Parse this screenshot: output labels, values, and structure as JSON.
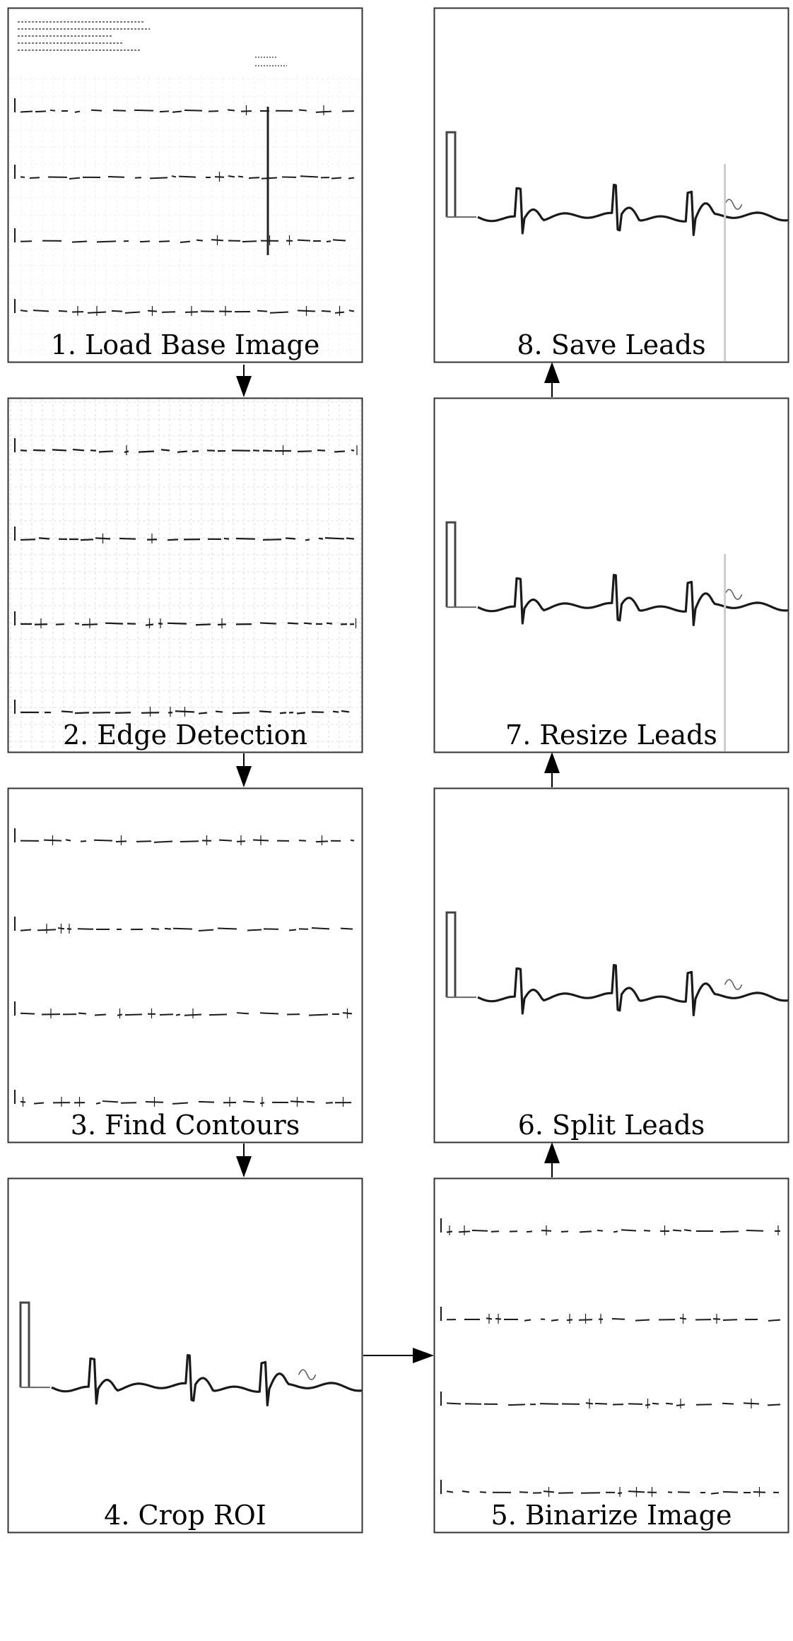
{
  "diagram": {
    "steps": [
      {
        "id": "s1",
        "label": "1. Load Base Image",
        "thumbnail": "ecg-full-page"
      },
      {
        "id": "s2",
        "label": "2. Edge Detection",
        "thumbnail": "ecg-edges"
      },
      {
        "id": "s3",
        "label": "3. Find Contours",
        "thumbnail": "ecg-contours"
      },
      {
        "id": "s4",
        "label": "4. Crop ROI",
        "thumbnail": "ecg-single-lead"
      },
      {
        "id": "s5",
        "label": "5. Binarize Image",
        "thumbnail": "ecg-contours"
      },
      {
        "id": "s6",
        "label": "6. Split Leads",
        "thumbnail": "ecg-single-lead"
      },
      {
        "id": "s7",
        "label": "7. Resize Leads",
        "thumbnail": "ecg-single-lead-marker"
      },
      {
        "id": "s8",
        "label": "8. Save Leads",
        "thumbnail": "ecg-single-lead-marker"
      }
    ],
    "flow": [
      [
        "s1",
        "s2"
      ],
      [
        "s2",
        "s3"
      ],
      [
        "s3",
        "s4"
      ],
      [
        "s4",
        "s5"
      ],
      [
        "s5",
        "s6"
      ],
      [
        "s6",
        "s7"
      ],
      [
        "s7",
        "s8"
      ]
    ],
    "colors": {
      "border": "#333333",
      "arrow": "#000000",
      "trace": "#1a1a1a",
      "grid": "#d9d9d9"
    }
  }
}
